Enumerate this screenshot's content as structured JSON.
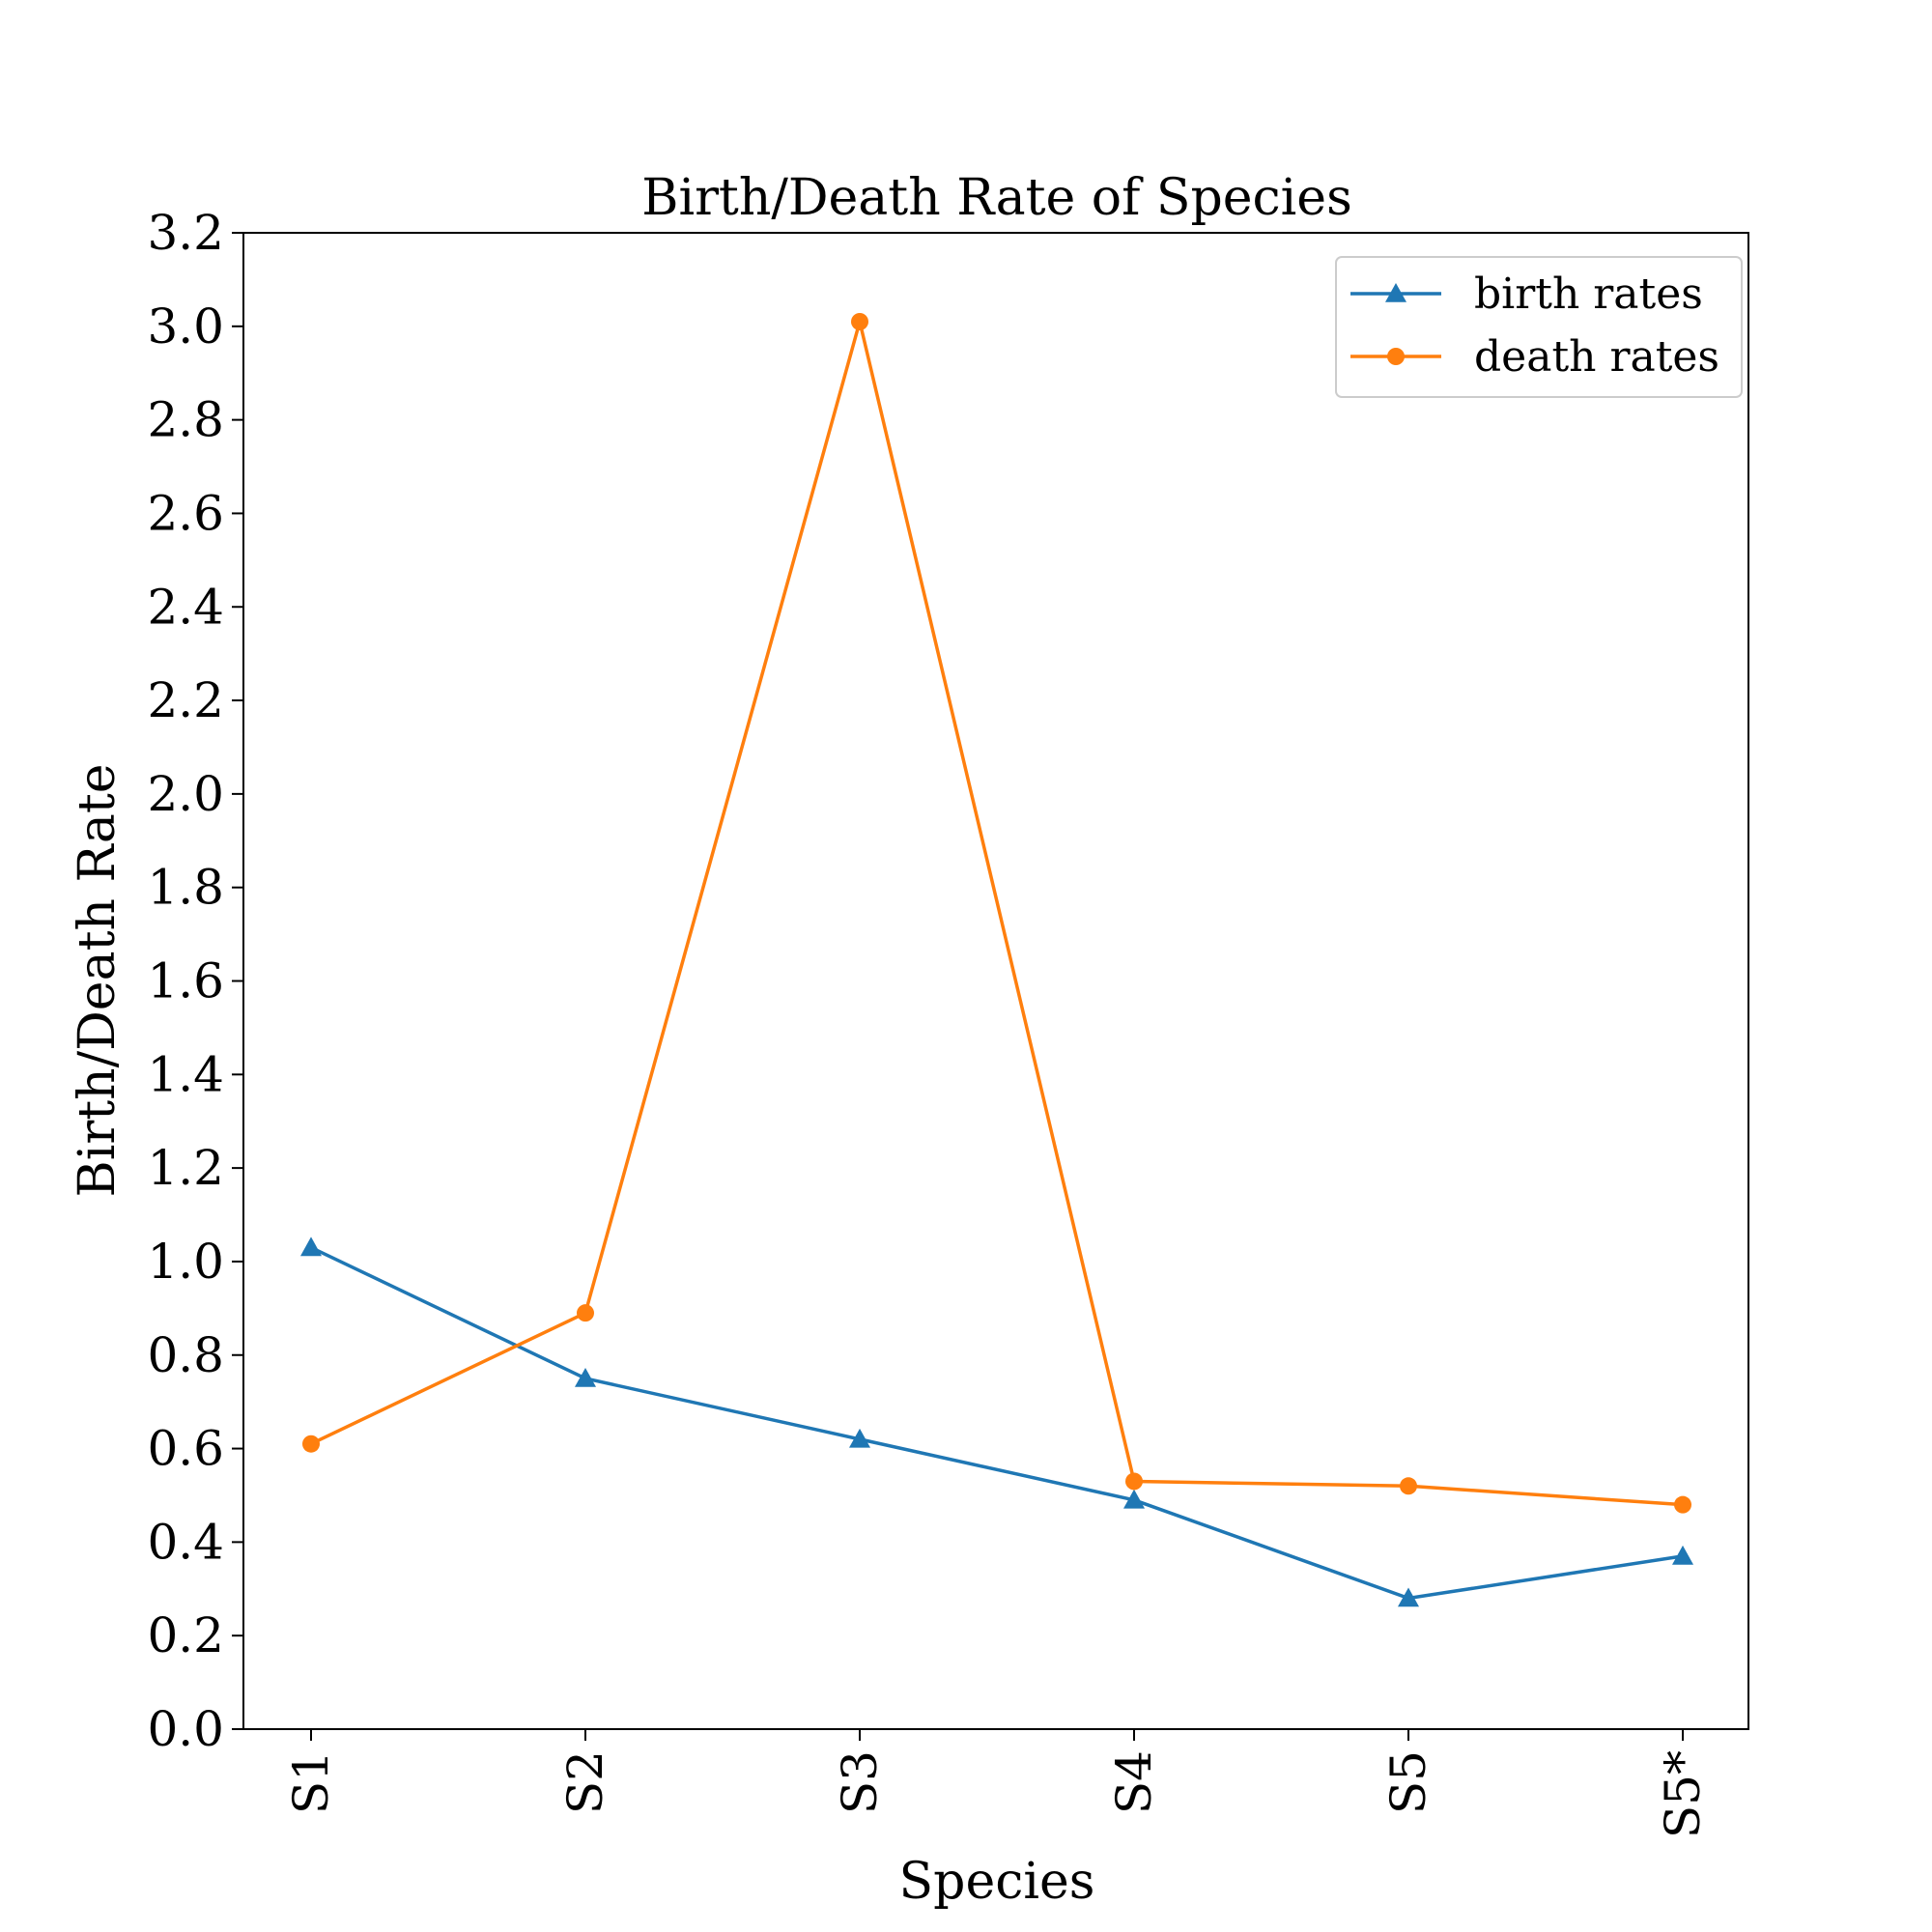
{
  "chart_data": {
    "type": "line",
    "title": "Birth/Death Rate of Species",
    "xlabel": "Species",
    "ylabel": "Birth/Death Rate",
    "categories": [
      "S1",
      "S2",
      "S3",
      "S4",
      "S5",
      "S5*"
    ],
    "ylim": [
      0.0,
      3.2
    ],
    "yticks": [
      "0.0",
      "0.2",
      "0.4",
      "0.6",
      "0.8",
      "1.0",
      "1.2",
      "1.4",
      "1.6",
      "1.8",
      "2.0",
      "2.2",
      "2.4",
      "2.6",
      "2.8",
      "3.0",
      "3.2"
    ],
    "grid": false,
    "legend_position": "top-right",
    "series": [
      {
        "name": "birth rates",
        "marker": "triangle",
        "color": "#1f77b4",
        "values": [
          1.03,
          0.75,
          0.62,
          0.49,
          0.28,
          0.37
        ]
      },
      {
        "name": "death rates",
        "marker": "circle",
        "color": "#ff7f0e",
        "values": [
          0.61,
          0.89,
          3.01,
          0.53,
          0.52,
          0.48
        ]
      }
    ]
  }
}
